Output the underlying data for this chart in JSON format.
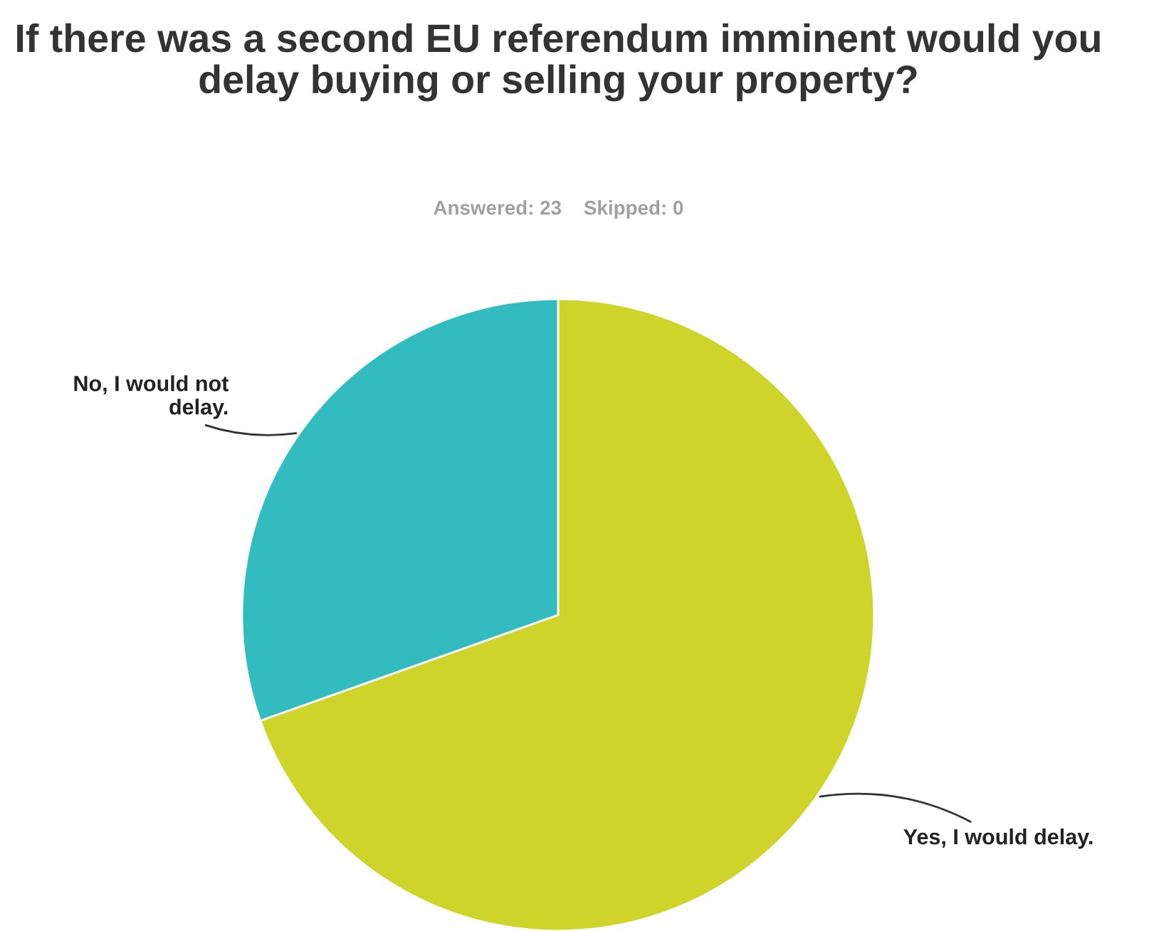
{
  "chart_data": {
    "type": "pie",
    "title": "If there was a second EU referendum imminent would you delay buying or selling your property?",
    "subtitle": "Answered: 23    Skipped: 0",
    "categories": [
      "Yes, I would delay.",
      "No, I would not\ndelay."
    ],
    "values": [
      69.57,
      30.43
    ],
    "colors": [
      "#ced42a",
      "#33bcbf"
    ]
  }
}
